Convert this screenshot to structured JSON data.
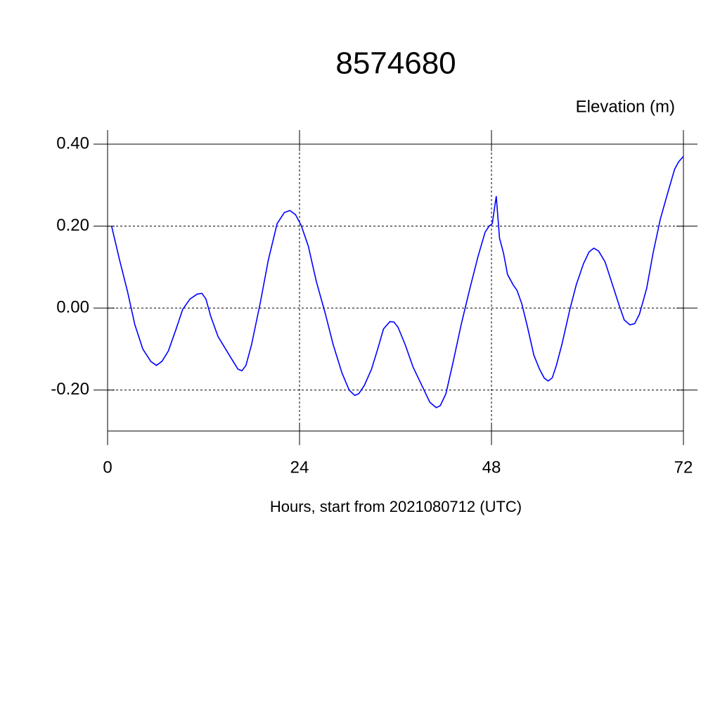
{
  "chart_data": {
    "type": "line",
    "title": "8574680",
    "ylabel": "Elevation (m)",
    "xlabel": "Hours, start from 2021080712 (UTC)",
    "xlim": [
      0,
      72
    ],
    "xticks": [
      0,
      24,
      48,
      72
    ],
    "ylim": [
      -0.3,
      0.4
    ],
    "yticks": [
      {
        "value": -0.2,
        "label": "-0.20"
      },
      {
        "value": 0,
        "label": "0.00"
      },
      {
        "value": 0.2,
        "label": "0.20"
      },
      {
        "value": 0.4,
        "label": "0.40"
      }
    ],
    "grid": true,
    "series": [
      {
        "name": "Elevation",
        "color": "#0000ff",
        "x": [
          0.5,
          1.5,
          2.5,
          3.4,
          4.4,
          5.4,
          6.1,
          6.8,
          7.6,
          8.5,
          9.4,
          10.3,
          11.2,
          11.8,
          12.3,
          12.9,
          13.8,
          14.7,
          15.6,
          16.3,
          16.8,
          17.3,
          18.0,
          19.1,
          20.1,
          21.2,
          22.1,
          22.8,
          23.5,
          24.2,
          25.1,
          26.1,
          27.2,
          28.2,
          29.3,
          30.2,
          30.9,
          31.4,
          32.1,
          33.0,
          33.8,
          34.5,
          35.3,
          35.8,
          36.3,
          37.2,
          38.2,
          39.3,
          40.3,
          41.1,
          41.6,
          42.3,
          43.2,
          44.2,
          45.3,
          46.3,
          47.2,
          47.7,
          48.1,
          48.6,
          49.0,
          49.5,
          50.0,
          50.7,
          51.2,
          51.8,
          52.5,
          53.3,
          54.0,
          54.6,
          55.1,
          55.6,
          56.1,
          56.8,
          57.8,
          58.6,
          59.5,
          60.2,
          60.8,
          61.4,
          62.2,
          63.0,
          63.9,
          64.6,
          65.3,
          65.9,
          66.5,
          67.4,
          68.2,
          69.1,
          70.0,
          70.9,
          71.4,
          72.0
        ],
        "values": [
          0.2,
          0.117,
          0.04,
          -0.04,
          -0.1,
          -0.13,
          -0.14,
          -0.13,
          -0.105,
          -0.055,
          -0.003,
          0.022,
          0.034,
          0.036,
          0.022,
          -0.02,
          -0.069,
          -0.098,
          -0.127,
          -0.149,
          -0.153,
          -0.14,
          -0.089,
          0.014,
          0.117,
          0.206,
          0.233,
          0.238,
          0.228,
          0.202,
          0.151,
          0.065,
          -0.012,
          -0.089,
          -0.158,
          -0.2,
          -0.213,
          -0.209,
          -0.189,
          -0.149,
          -0.098,
          -0.051,
          -0.033,
          -0.034,
          -0.046,
          -0.089,
          -0.144,
          -0.189,
          -0.23,
          -0.243,
          -0.238,
          -0.209,
          -0.132,
          -0.041,
          0.048,
          0.125,
          0.185,
          0.2,
          0.206,
          0.273,
          0.171,
          0.134,
          0.082,
          0.057,
          0.043,
          0.01,
          -0.046,
          -0.115,
          -0.149,
          -0.171,
          -0.178,
          -0.17,
          -0.141,
          -0.089,
          -0.003,
          0.057,
          0.108,
          0.137,
          0.146,
          0.139,
          0.113,
          0.065,
          0.01,
          -0.029,
          -0.041,
          -0.038,
          -0.015,
          0.048,
          0.134,
          0.216,
          0.279,
          0.339,
          0.357,
          0.37
        ]
      }
    ]
  }
}
